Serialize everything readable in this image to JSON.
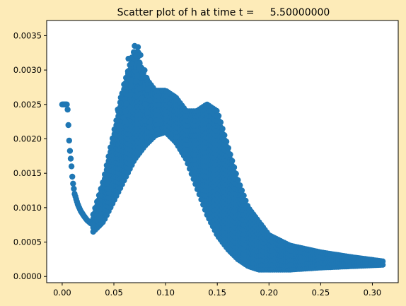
{
  "figure": {
    "background": "#fdebb8",
    "marker_color": "#1f77b4"
  },
  "chart_data": {
    "type": "scatter",
    "title": "Scatter plot of h at time t =     5.50000000",
    "xlabel": "",
    "ylabel": "",
    "xlim": [
      -0.015,
      0.325
    ],
    "ylim": [
      -9e-05,
      0.00372
    ],
    "grid": false,
    "x_ticks": [
      0.0,
      0.05,
      0.1,
      0.15,
      0.2,
      0.25,
      0.3
    ],
    "x_tick_labels": [
      "0.00",
      "0.05",
      "0.10",
      "0.15",
      "0.20",
      "0.25",
      "0.30"
    ],
    "y_ticks": [
      0.0,
      0.0005,
      0.001,
      0.0015,
      0.002,
      0.0025,
      0.003,
      0.0035
    ],
    "y_tick_labels": [
      "0.0000",
      "0.0005",
      "0.0010",
      "0.0015",
      "0.0020",
      "0.0025",
      "0.0030",
      "0.0035"
    ],
    "series": [
      {
        "color": "#1f77b4",
        "upper_envelope": {
          "x": [
            0.03,
            0.04,
            0.05,
            0.06,
            0.07,
            0.08,
            0.09,
            0.1,
            0.11,
            0.12,
            0.13,
            0.14,
            0.15,
            0.16,
            0.17,
            0.18,
            0.19,
            0.2,
            0.22,
            0.25,
            0.28,
            0.31
          ],
          "y": [
            0.0009,
            0.0014,
            0.0021,
            0.0028,
            0.0033,
            0.0029,
            0.0027,
            0.0027,
            0.0026,
            0.0024,
            0.0024,
            0.0025,
            0.0024,
            0.0019,
            0.0014,
            0.001,
            0.0008,
            0.0006,
            0.00045,
            0.00035,
            0.00028,
            0.00022
          ]
        },
        "lower_envelope": {
          "x": [
            0.03,
            0.04,
            0.05,
            0.06,
            0.07,
            0.08,
            0.09,
            0.1,
            0.11,
            0.12,
            0.13,
            0.14,
            0.15,
            0.16,
            0.17,
            0.18,
            0.19,
            0.2,
            0.22,
            0.25,
            0.28,
            0.31
          ],
          "y": [
            0.00065,
            0.0008,
            0.0011,
            0.0014,
            0.0017,
            0.0019,
            0.00205,
            0.0021,
            0.00195,
            0.0017,
            0.0013,
            0.0009,
            0.0006,
            0.0004,
            0.00025,
            0.00015,
            0.0001,
            0.0001,
            0.0001,
            0.00013,
            0.00015,
            0.00017
          ]
        },
        "left_branch": {
          "x": [
            0.0,
            0.003,
            0.005,
            0.007,
            0.009,
            0.01,
            0.012,
            0.015,
            0.018,
            0.021,
            0.024,
            0.027,
            0.03
          ],
          "y": [
            0.0025,
            0.0025,
            0.0025,
            0.0019,
            0.0016,
            0.0014,
            0.0012,
            0.00105,
            0.00095,
            0.00088,
            0.00082,
            0.00078,
            0.00075
          ]
        },
        "spikes": {
          "x": [
            0.055,
            0.06,
            0.062,
            0.065,
            0.068,
            0.07,
            0.072,
            0.074,
            0.076,
            0.078,
            0.08,
            0.082,
            0.085
          ],
          "y": [
            0.0026,
            0.0028,
            0.0029,
            0.0032,
            0.0034,
            0.00355,
            0.0034,
            0.0033,
            0.0031,
            0.003,
            0.0029,
            0.0028,
            0.0027
          ]
        }
      }
    ]
  }
}
